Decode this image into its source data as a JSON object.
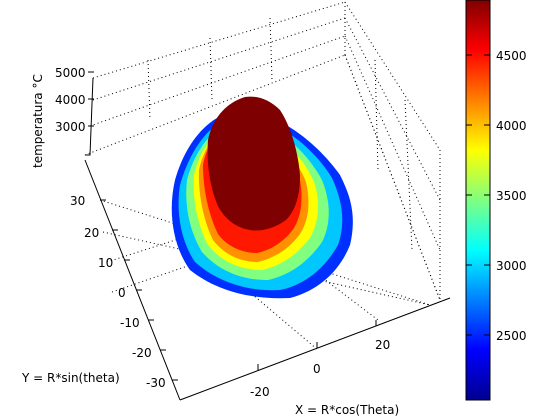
{
  "chart_data": {
    "type": "surface3d",
    "view": "3d-perspective",
    "grid": true,
    "xlabel": "X = R*cos(Theta)",
    "ylabel": "Y = R*sin(theta)",
    "zlabel": "temperatura °C",
    "xlim": [
      -35,
      35
    ],
    "ylim": [
      -35,
      35
    ],
    "zlim": [
      2000,
      5000
    ],
    "x_ticks": [
      "-20",
      "0",
      "20"
    ],
    "y_ticks": [
      "-30",
      "-20",
      "-10",
      "0",
      "10",
      "20",
      "30"
    ],
    "z_ticks": [
      "3000",
      "4000",
      "5000"
    ],
    "colormap": "jet",
    "color_range": [
      2150,
      4900
    ],
    "colorbar_ticks": [
      "2500",
      "3000",
      "3500",
      "4000",
      "4500"
    ],
    "colorbar_location": "right",
    "surface": {
      "shape": "dome (hot cap over a circular base)",
      "peak_value": 4900,
      "edge_value": 2200,
      "peak_color": "#7f0000",
      "edge_color": "#0000bf"
    }
  }
}
